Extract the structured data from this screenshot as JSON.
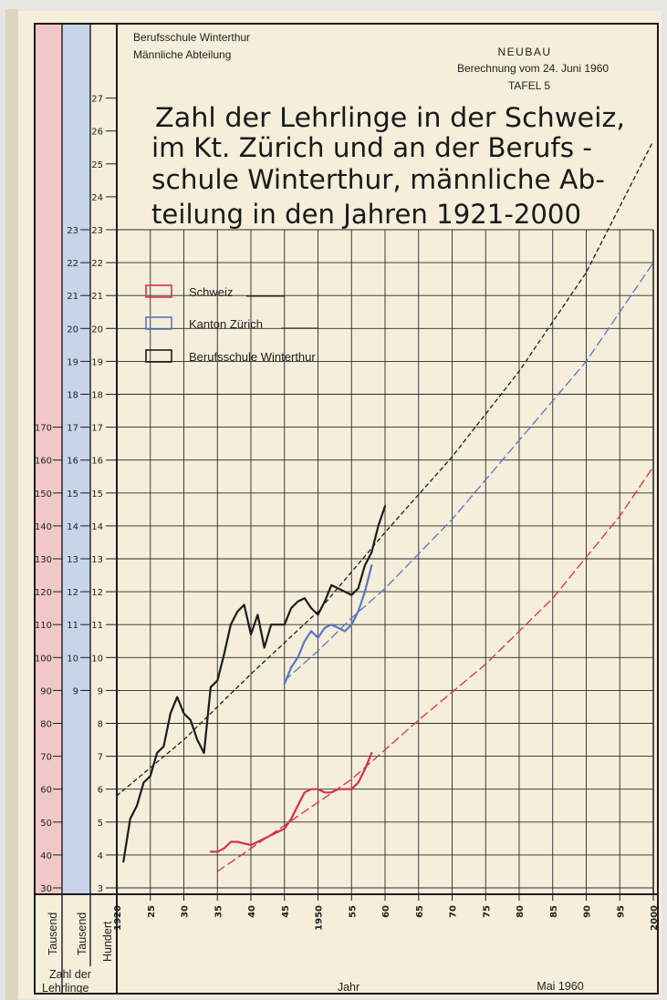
{
  "header": {
    "school_line1": "Berufsschule Winterthur",
    "school_line2": "Männliche Abteilung",
    "tag_neubau": "NEUBAU",
    "calc_date": "Berechnung vom 24. Juni 1960",
    "plate": "TAFEL 5"
  },
  "colors": {
    "paper": "#f4eeda",
    "ink": "#1c1c1c",
    "schweiz": "#d6304a",
    "zuerich": "#5a76c2",
    "strip_red": "#f0c8c8",
    "strip_blue": "#c7d4ea"
  },
  "footer": {
    "stub_left": "Tausend",
    "stub_mid": "Tausend",
    "stub_right": "Hundert",
    "zahl_der": "Zahl der",
    "lehrlinge": "Lehrlinge",
    "x_label": "Jahr",
    "date": "Mai 1960"
  },
  "chart_data": {
    "type": "line",
    "title": "Zahl der Lehrlinge in der Schweiz, im Kt. Zürich und an der Berufs - schule Winterthur, männliche Ab- teilung in den Jahren 1921-2000",
    "title_lines": [
      "Zahl der Lehrlinge in der Schweiz,",
      "im Kt. Zürich und an der Berufs -",
      "schule Winterthur, männliche Ab-",
      "teilung in den Jahren 1921-2000"
    ],
    "xlabel": "Jahr",
    "x_ticks": [
      "1920",
      "25",
      "30",
      "35",
      "40",
      "45",
      "1950",
      "55",
      "60",
      "65",
      "70",
      "75",
      "80",
      "85",
      "90",
      "95",
      "2000"
    ],
    "xlim": [
      1920,
      2000
    ],
    "y_axes": {
      "hundert": {
        "label": "Hundert",
        "ticks": [
          "3",
          "4",
          "5",
          "6",
          "7",
          "8",
          "9",
          "10",
          "11",
          "12",
          "13",
          "14",
          "15",
          "16",
          "17",
          "18",
          "19",
          "20",
          "21",
          "22",
          "23",
          "24",
          "25",
          "26",
          "27"
        ],
        "range": [
          3,
          27
        ]
      },
      "tausend_zuerich": {
        "label": "Tausend",
        "ticks": [
          "9",
          "10",
          "11",
          "12",
          "13",
          "14",
          "15",
          "16",
          "17",
          "18",
          "19",
          "20",
          "21",
          "22",
          "23"
        ],
        "range": [
          3,
          27
        ]
      },
      "tausend_schweiz": {
        "label": "Tausend",
        "ticks": [
          "30",
          "40",
          "50",
          "60",
          "70",
          "80",
          "90",
          "100",
          "110",
          "120",
          "130",
          "140",
          "150",
          "160",
          "170"
        ],
        "range": [
          30,
          270
        ]
      }
    },
    "legend": [
      {
        "label": "Schweiz",
        "color": "#d6304a"
      },
      {
        "label": "Kanton Zürich",
        "color": "#5a76c2"
      },
      {
        "label": "Berufsschule Winterthur",
        "color": "#1c1c1c"
      }
    ],
    "series": [
      {
        "name": "Berufsschule Winterthur",
        "style": "actual",
        "x": [
          1921,
          1922,
          1923,
          1924,
          1925,
          1926,
          1927,
          1928,
          1929,
          1930,
          1931,
          1932,
          1933,
          1934,
          1935,
          1936,
          1937,
          1938,
          1939,
          1940,
          1941,
          1942,
          1943,
          1944,
          1945,
          1946,
          1947,
          1948,
          1949,
          1950,
          1951,
          1952,
          1953,
          1954,
          1955,
          1956,
          1957,
          1958,
          1959,
          1960
        ],
        "y": [
          3.8,
          5.1,
          5.5,
          6.2,
          6.4,
          7.1,
          7.3,
          8.3,
          8.8,
          8.3,
          8.1,
          7.5,
          7.1,
          9.1,
          9.3,
          10.1,
          11.0,
          11.4,
          11.6,
          10.7,
          11.3,
          10.3,
          11.0,
          11.0,
          11.0,
          11.5,
          11.7,
          11.8,
          11.5,
          11.3,
          11.7,
          12.2,
          12.1,
          12.0,
          11.9,
          12.1,
          12.8,
          13.2,
          14.0,
          14.6
        ]
      },
      {
        "name": "Berufsschule Winterthur",
        "style": "trend",
        "x": [
          1920,
          1930,
          1940,
          1950,
          1960,
          1970,
          1980,
          1990,
          2000
        ],
        "y": [
          5.8,
          7.5,
          9.5,
          11.4,
          13.8,
          16.1,
          18.7,
          21.7,
          25.7
        ]
      },
      {
        "name": "Kanton Zürich",
        "style": "actual",
        "x": [
          1945,
          1946,
          1947,
          1948,
          1949,
          1950,
          1951,
          1952,
          1953,
          1954,
          1955,
          1956,
          1957,
          1958
        ],
        "y": [
          9.2,
          9.7,
          10.0,
          10.5,
          10.8,
          10.6,
          10.9,
          11.0,
          10.9,
          10.8,
          11.0,
          11.4,
          12.0,
          12.8
        ]
      },
      {
        "name": "Kanton Zürich",
        "style": "trend",
        "x": [
          1945,
          1950,
          1955,
          1960,
          1970,
          1980,
          1990,
          2000
        ],
        "y": [
          9.3,
          10.2,
          11.2,
          12.1,
          14.2,
          16.6,
          19.0,
          22.0
        ]
      },
      {
        "name": "Schweiz",
        "style": "actual",
        "x": [
          1934,
          1935,
          1936,
          1937,
          1938,
          1939,
          1940,
          1941,
          1942,
          1943,
          1944,
          1945,
          1946,
          1947,
          1948,
          1949,
          1950,
          1951,
          1952,
          1953,
          1954,
          1955,
          1956,
          1957,
          1958
        ],
        "y": [
          41,
          41,
          42,
          44,
          44,
          43.5,
          43,
          44,
          45,
          46,
          47,
          48,
          51,
          55,
          59,
          60,
          60,
          59,
          59,
          60,
          60,
          60,
          62,
          66,
          71
        ]
      },
      {
        "name": "Schweiz",
        "style": "trend",
        "x": [
          1935,
          1945,
          1955,
          1965,
          1975,
          1985,
          1995,
          2000
        ],
        "y": [
          35,
          49,
          63,
          81,
          98,
          118,
          143,
          158
        ]
      }
    ]
  }
}
